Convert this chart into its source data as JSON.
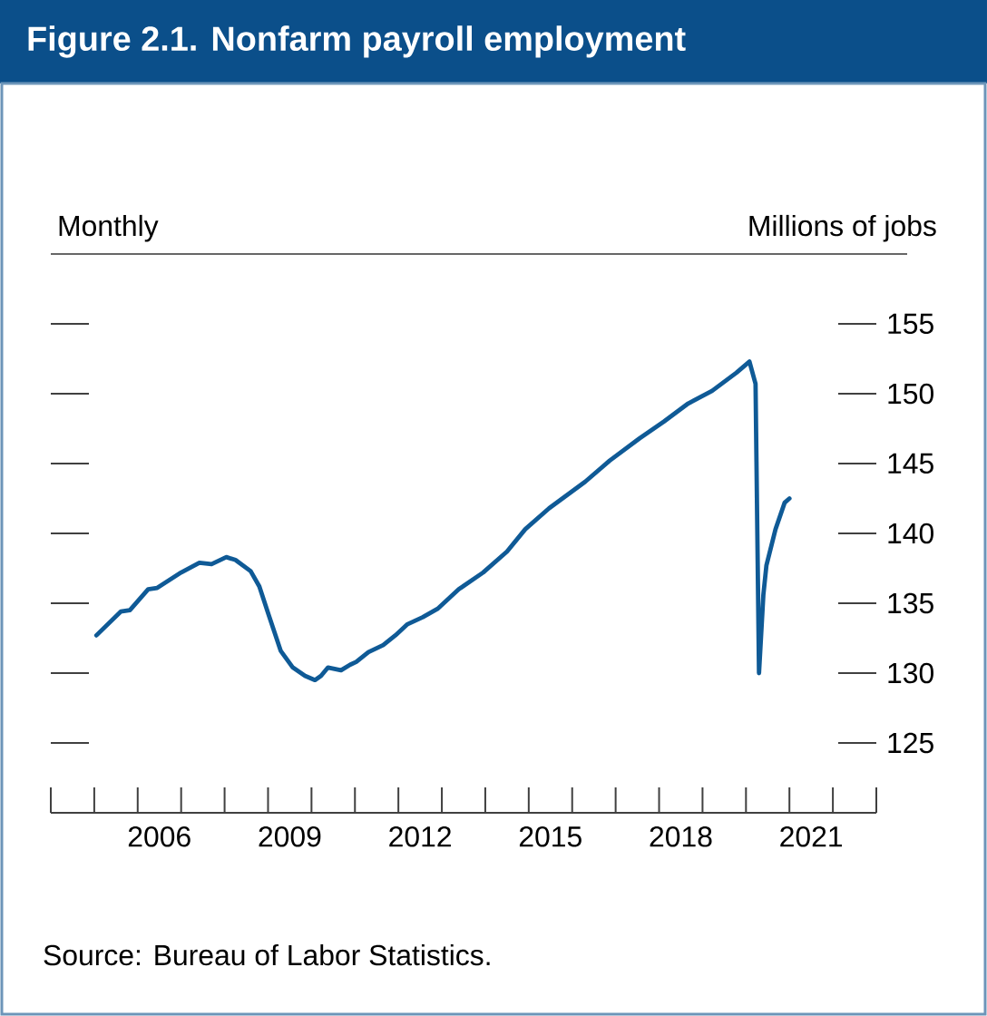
{
  "chart_data": {
    "type": "line",
    "title": "Figure 2.1. Nonfarm payroll employment",
    "subtitle": "Monthly",
    "ylabel": "Millions of jobs",
    "annotations": [
      "Source: Bureau of Labor Statistics."
    ],
    "series": [
      {
        "color": "#0f5a96",
        "x": [
          2005.05,
          2005.61,
          2005.82,
          2006.24,
          2006.45,
          2007.0,
          2007.42,
          2007.7,
          2008.04,
          2008.25,
          2008.6,
          2008.8,
          2009.0,
          2009.29,
          2009.57,
          2009.85,
          2010.08,
          2010.22,
          2010.38,
          2010.68,
          2010.89,
          2011.03,
          2011.31,
          2011.65,
          2011.93,
          2012.21,
          2012.56,
          2012.9,
          2013.39,
          2013.95,
          2014.5,
          2014.92,
          2015.47,
          2016.3,
          2016.86,
          2017.55,
          2018.11,
          2018.67,
          2019.22,
          2019.78,
          2020.08,
          2020.22,
          2020.3,
          2020.4,
          2020.47,
          2020.68,
          2020.89,
          2021.0
        ],
        "values": [
          132.7,
          134.4,
          134.5,
          136.0,
          136.1,
          137.2,
          137.9,
          137.8,
          138.3,
          138.1,
          137.3,
          136.2,
          134.3,
          131.6,
          130.4,
          129.8,
          129.5,
          129.8,
          130.4,
          130.2,
          130.6,
          130.8,
          131.5,
          132.0,
          132.7,
          133.5,
          134.0,
          134.6,
          136.0,
          137.2,
          138.7,
          140.3,
          141.8,
          143.7,
          145.2,
          146.8,
          148.0,
          149.3,
          150.2,
          151.5,
          152.3,
          150.7,
          130.0,
          135.6,
          137.7,
          140.3,
          142.2,
          142.5
        ]
      }
    ],
    "xlim": [
      2004,
      2023
    ],
    "xticks": [
      {
        "value": 2004,
        "label": null
      },
      {
        "value": 2005,
        "label": null
      },
      {
        "value": 2006,
        "label": null
      },
      {
        "value": 2007,
        "label": null
      },
      {
        "value": 2008,
        "label": null
      },
      {
        "value": 2009,
        "label": null
      },
      {
        "value": 2010,
        "label": null
      },
      {
        "value": 2011,
        "label": null
      },
      {
        "value": 2012,
        "label": null
      },
      {
        "value": 2013,
        "label": null
      },
      {
        "value": 2014,
        "label": null
      },
      {
        "value": 2015,
        "label": null
      },
      {
        "value": 2016,
        "label": null
      },
      {
        "value": 2017,
        "label": null
      },
      {
        "value": 2018,
        "label": null
      },
      {
        "value": 2019,
        "label": null
      },
      {
        "value": 2020,
        "label": null
      },
      {
        "value": 2021,
        "label": null
      },
      {
        "value": 2022,
        "label": null
      },
      {
        "value": 2023,
        "label": null
      },
      {
        "value": 2006.5,
        "label": "2006"
      },
      {
        "value": 2009.5,
        "label": "2009"
      },
      {
        "value": 2012.5,
        "label": "2012"
      },
      {
        "value": 2015.5,
        "label": "2015"
      },
      {
        "value": 2018.5,
        "label": "2018"
      },
      {
        "value": 2021.5,
        "label": "2021"
      }
    ],
    "ylim": [
      120,
      160
    ],
    "yticks": [
      125,
      130,
      135,
      140,
      145,
      150,
      155
    ],
    "marker": "none",
    "line_style": "solid",
    "grid": false
  }
}
